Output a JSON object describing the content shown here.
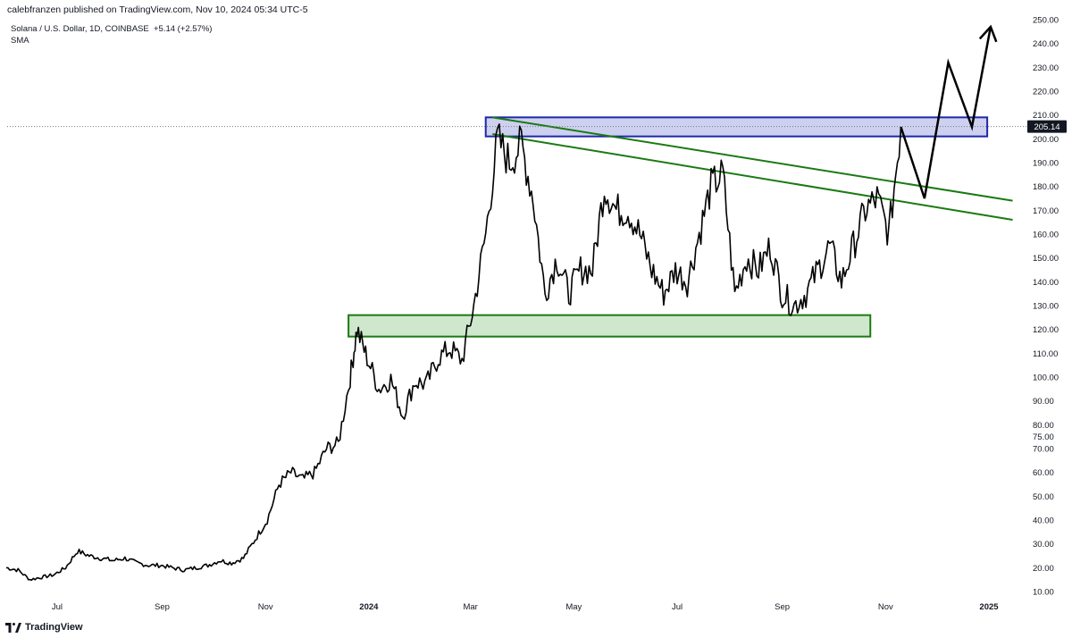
{
  "header": {
    "publisher_line": "calebfranzen published on TradingView.com, Nov 10, 2024 05:34 UTC-5",
    "symbol_line": "Solana / U.S. Dollar, 1D, COINBASE",
    "change": "+5.14 (+2.57%)",
    "indicator": "SMA"
  },
  "footer": {
    "brand": "TradingView",
    "logo_icon": "tradingview-logo-icon"
  },
  "chart_data": {
    "type": "line",
    "style": "candlestick-like daily price line",
    "x_axis_labels": [
      "Jul",
      "Sep",
      "Nov",
      "2024",
      "Mar",
      "May",
      "Jul",
      "Sep",
      "Nov",
      "2025"
    ],
    "x_axis_bold": [
      "2024",
      "2025"
    ],
    "x_range": [
      "2023-06",
      "2025-01"
    ],
    "y_range": [
      5,
      255
    ],
    "y_ticks": [
      10,
      20,
      30,
      40,
      50,
      60,
      70,
      75,
      80,
      90,
      100,
      110,
      120,
      130,
      140,
      150,
      160,
      170,
      180,
      190,
      200,
      210,
      220,
      230,
      240,
      250
    ],
    "y_tick_labels": [
      "10.00",
      "20.00",
      "30.00",
      "40.00",
      "50.00",
      "60.00",
      "70.00",
      "75.00",
      "80.00",
      "90.00",
      "100.00",
      "110.00",
      "120.00",
      "130.00",
      "140.00",
      "150.00",
      "160.00",
      "170.00",
      "180.00",
      "190.00",
      "200.00",
      "210.00",
      "220.00",
      "230.00",
      "240.00",
      "250.00"
    ],
    "last_price": 205.14,
    "last_price_label": "205.14",
    "series": [
      {
        "values": [
          [
            "2023-06-01",
            20
          ],
          [
            "2023-06-08",
            19
          ],
          [
            "2023-06-15",
            15
          ],
          [
            "2023-06-22",
            16
          ],
          [
            "2023-06-29",
            17
          ],
          [
            "2023-07-06",
            20
          ],
          [
            "2023-07-13",
            27
          ],
          [
            "2023-07-20",
            25
          ],
          [
            "2023-07-27",
            24
          ],
          [
            "2023-08-03",
            23
          ],
          [
            "2023-08-10",
            24
          ],
          [
            "2023-08-17",
            22
          ],
          [
            "2023-08-24",
            21
          ],
          [
            "2023-08-31",
            21
          ],
          [
            "2023-09-07",
            20
          ],
          [
            "2023-09-14",
            19
          ],
          [
            "2023-09-21",
            20
          ],
          [
            "2023-09-28",
            21
          ],
          [
            "2023-10-05",
            23
          ],
          [
            "2023-10-12",
            22
          ],
          [
            "2023-10-19",
            24
          ],
          [
            "2023-10-26",
            32
          ],
          [
            "2023-11-02",
            40
          ],
          [
            "2023-11-09",
            55
          ],
          [
            "2023-11-16",
            60
          ],
          [
            "2023-11-23",
            57
          ],
          [
            "2023-11-30",
            60
          ],
          [
            "2023-12-07",
            70
          ],
          [
            "2023-12-14",
            72
          ],
          [
            "2023-12-21",
            100
          ],
          [
            "2023-12-25",
            120
          ],
          [
            "2023-12-31",
            108
          ],
          [
            "2024-01-07",
            95
          ],
          [
            "2024-01-14",
            99
          ],
          [
            "2024-01-21",
            84
          ],
          [
            "2024-01-28",
            98
          ],
          [
            "2024-02-04",
            97
          ],
          [
            "2024-02-11",
            108
          ],
          [
            "2024-02-18",
            112
          ],
          [
            "2024-02-25",
            107
          ],
          [
            "2024-03-03",
            130
          ],
          [
            "2024-03-10",
            160
          ],
          [
            "2024-03-17",
            200
          ],
          [
            "2024-03-24",
            190
          ],
          [
            "2024-03-31",
            198
          ],
          [
            "2024-04-07",
            175
          ],
          [
            "2024-04-14",
            135
          ],
          [
            "2024-04-21",
            150
          ],
          [
            "2024-04-28",
            135
          ],
          [
            "2024-05-05",
            145
          ],
          [
            "2024-05-12",
            145
          ],
          [
            "2024-05-19",
            180
          ],
          [
            "2024-05-26",
            170
          ],
          [
            "2024-06-02",
            170
          ],
          [
            "2024-06-09",
            160
          ],
          [
            "2024-06-16",
            145
          ],
          [
            "2024-06-23",
            135
          ],
          [
            "2024-06-30",
            145
          ],
          [
            "2024-07-07",
            140
          ],
          [
            "2024-07-14",
            160
          ],
          [
            "2024-07-21",
            180
          ],
          [
            "2024-07-28",
            185
          ],
          [
            "2024-08-04",
            135
          ],
          [
            "2024-08-11",
            150
          ],
          [
            "2024-08-18",
            145
          ],
          [
            "2024-08-25",
            155
          ],
          [
            "2024-09-01",
            135
          ],
          [
            "2024-09-08",
            130
          ],
          [
            "2024-09-15",
            135
          ],
          [
            "2024-09-22",
            145
          ],
          [
            "2024-09-29",
            155
          ],
          [
            "2024-10-06",
            140
          ],
          [
            "2024-10-13",
            155
          ],
          [
            "2024-10-20",
            170
          ],
          [
            "2024-10-27",
            175
          ],
          [
            "2024-11-03",
            160
          ],
          [
            "2024-11-10",
            205
          ]
        ]
      }
    ],
    "projection_path": [
      [
        "2024-11-10",
        205
      ],
      [
        "2024-11-24",
        175
      ],
      [
        "2024-12-08",
        232
      ],
      [
        "2024-12-22",
        205
      ],
      [
        "2025-01-02",
        247
      ]
    ],
    "annotations": {
      "resistance_zone": {
        "x_start": "2024-03-10",
        "x_end": "2024-12-31",
        "y_low": 201,
        "y_high": 209,
        "fill": "#cdd0ef",
        "stroke": "#1f29a8"
      },
      "support_zone": {
        "x_start": "2023-12-20",
        "x_end": "2024-10-23",
        "y_low": 117,
        "y_high": 126,
        "fill": "#cfe8cd",
        "stroke": "#1b7a12"
      },
      "trendlines": [
        {
          "from": [
            "2024-03-14",
            209
          ],
          "to": [
            "2025-01-15",
            174
          ],
          "color": "#1b7a12"
        },
        {
          "from": [
            "2024-03-14",
            202
          ],
          "to": [
            "2025-01-15",
            166
          ],
          "color": "#1b7a12"
        }
      ],
      "last_price_dotted_line": true
    },
    "colors": {
      "price_line": "#000000",
      "projection": "#000000",
      "price_tag_bg": "#131722"
    }
  }
}
